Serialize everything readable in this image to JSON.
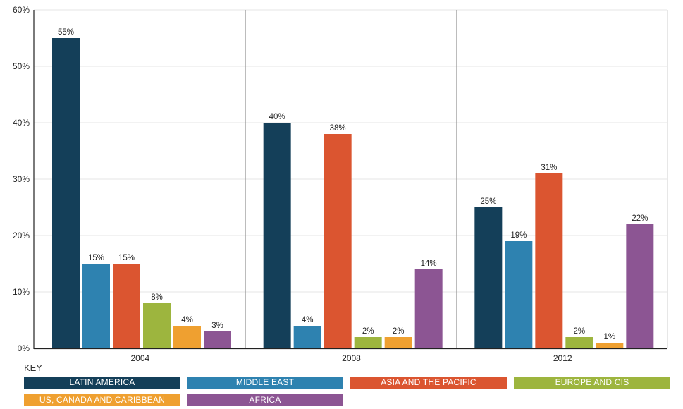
{
  "chart_data": {
    "type": "bar",
    "categories": [
      "2004",
      "2008",
      "2012"
    ],
    "ylim": [
      0,
      60
    ],
    "yticks": [
      "0%",
      "10%",
      "20%",
      "30%",
      "40%",
      "50%",
      "60%"
    ],
    "grid": true,
    "legend_title": "KEY",
    "legend_position": "bottom",
    "series": [
      {
        "name": "LATIN AMERICA",
        "color": "#143f59",
        "values": [
          55,
          40,
          25
        ],
        "labels": [
          "55%",
          "40%",
          "25%"
        ]
      },
      {
        "name": "MIDDLE EAST",
        "color": "#2e82b0",
        "values": [
          15,
          4,
          19
        ],
        "labels": [
          "15%",
          "4%",
          "19%"
        ]
      },
      {
        "name": "ASIA AND THE PACIFIC",
        "color": "#db5530",
        "values": [
          15,
          38,
          31
        ],
        "labels": [
          "15%",
          "38%",
          "31%"
        ]
      },
      {
        "name": "EUROPE AND CIS",
        "color": "#9db53e",
        "values": [
          8,
          2,
          2
        ],
        "labels": [
          "8%",
          "2%",
          "2%"
        ]
      },
      {
        "name": "US, CANADA AND CARIBBEAN",
        "color": "#efa030",
        "values": [
          4,
          2,
          1
        ],
        "labels": [
          "4%",
          "2%",
          "1%"
        ]
      },
      {
        "name": "AFRICA",
        "color": "#8c5593",
        "values": [
          3,
          14,
          22
        ],
        "labels": [
          "3%",
          "14%",
          "22%"
        ]
      }
    ]
  }
}
